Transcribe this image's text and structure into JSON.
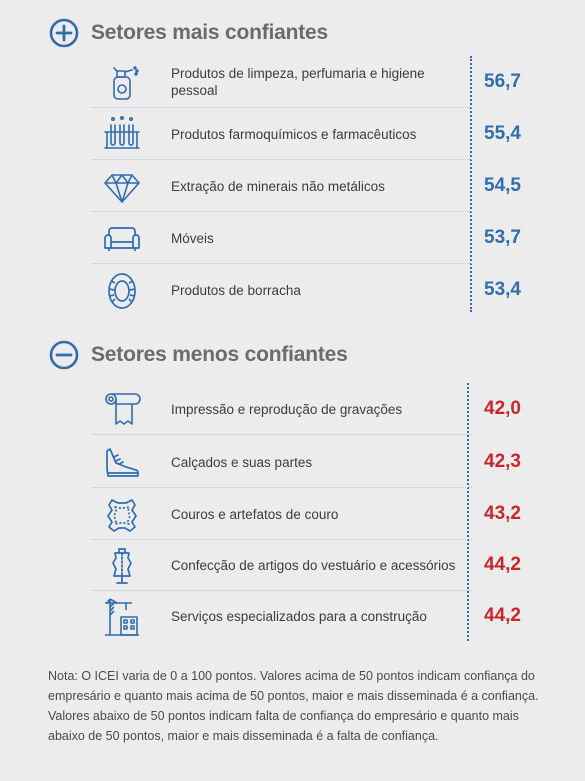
{
  "colors": {
    "accent": "#2f6dae",
    "positive": "#2f6dae",
    "negative": "#c7262c",
    "title": "#6b6b6b"
  },
  "sections": [
    {
      "title": "Setores mais confiantes",
      "icon": "plus-circle-icon"
    },
    {
      "title": "Setores menos confiantes",
      "icon": "minus-circle-icon"
    }
  ],
  "note": "Nota: O ICEI varia de 0 a 100 pontos. Valores acima de 50 pontos indicam confiança do empresário e quanto mais acima de 50 pontos, maior e mais disseminada é a confiança. Valores abaixo de 50 pontos indicam falta de confiança do empresário e quanto mais abaixo de 50 pontos, maior e mais disseminada é a falta de confiança.",
  "chart_data": {
    "type": "table",
    "groups": [
      {
        "title": "Setores mais confiantes",
        "rows": [
          {
            "category": "Produtos de limpeza, perfumaria e higiene pessoal",
            "value": "56,7",
            "icon": "spray-bottle-icon"
          },
          {
            "category": "Produtos farmoquímicos e farmacêuticos",
            "value": "55,4",
            "icon": "test-tubes-icon"
          },
          {
            "category": "Extração de minerais não metálicos",
            "value": "54,5",
            "icon": "diamond-icon"
          },
          {
            "category": "Móveis",
            "value": "53,7",
            "icon": "sofa-icon"
          },
          {
            "category": "Produtos de borracha",
            "value": "53,4",
            "icon": "tire-icon"
          }
        ]
      },
      {
        "title": "Setores menos confiantes",
        "rows": [
          {
            "category": "Impressão e reprodução de gravações",
            "value": "42,0",
            "icon": "paper-roll-icon"
          },
          {
            "category": "Calçados e suas partes",
            "value": "42,3",
            "icon": "sneaker-icon"
          },
          {
            "category": "Couros e artefatos de couro",
            "value": "43,2",
            "icon": "leather-hide-icon"
          },
          {
            "category": "Confecção de artigos do vestuário e acessórios",
            "value": "44,2",
            "icon": "dress-form-icon"
          },
          {
            "category": "Serviços especializados para a construção",
            "value": "44,2",
            "icon": "crane-building-icon"
          }
        ]
      }
    ]
  }
}
